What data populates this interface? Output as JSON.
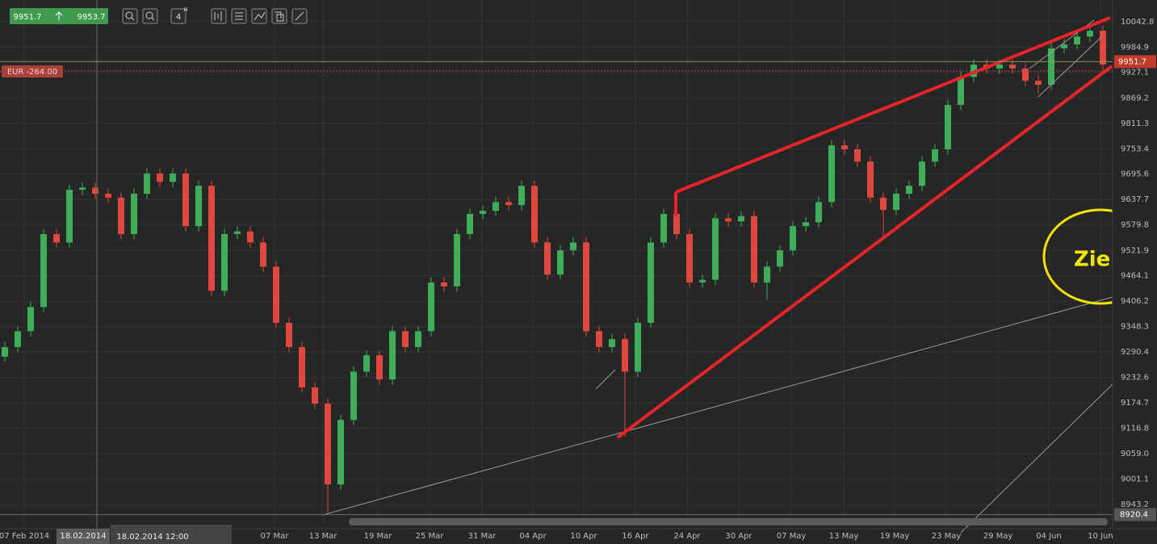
{
  "chart_data": {
    "type": "candlestick",
    "toolbar": {
      "sell": "9951.7",
      "buy": "9953.7",
      "interval": "4",
      "interval_unit": "H"
    },
    "position_label": "EUR -264.00",
    "last_price": 9951.7,
    "crosshair_price": 8920.4,
    "crosshair_date": "18.02.2014",
    "crosshair_datetime": "18.02.2014 12:00",
    "annotation": "Ziel",
    "colors": {
      "up": "#3fae5a",
      "down": "#e0473d",
      "grid": "#323232"
    },
    "grid": true,
    "xlim": [
      -0.375,
      85.75
    ],
    "ylim": [
      8916,
      10092
    ],
    "yticks": [
      10042.8,
      9984.9,
      9927.1,
      9869.2,
      9811.3,
      9753.4,
      9695.6,
      9637.7,
      9579.8,
      9521.9,
      9464.1,
      9406.2,
      9348.3,
      9290.4,
      9232.6,
      9174.7,
      9116.8,
      {
        "value": 9059,
        "label": "9059.0"
      },
      9001.1,
      8943.2
    ],
    "xticks": [
      {
        "value": 1.5,
        "label": "07 Feb 2014"
      },
      {
        "value": 20.875,
        "label": "07 Mar"
      },
      {
        "value": 24.625,
        "label": "13 Mar"
      },
      {
        "value": 28.875,
        "label": "19 Mar"
      },
      {
        "value": 32.875,
        "label": "25 Mar"
      },
      {
        "value": 36.94,
        "label": "31 Mar"
      },
      {
        "value": 40.875,
        "label": "04 Apr"
      },
      {
        "value": 44.81,
        "label": "10 Apr"
      },
      {
        "value": 48.81,
        "label": "16 Apr"
      },
      {
        "value": 52.81,
        "label": "24 Apr"
      },
      {
        "value": 56.81,
        "label": "30 Apr"
      },
      {
        "value": 60.875,
        "label": "07 May"
      },
      {
        "value": 64.94,
        "label": "13 May"
      },
      {
        "value": 68.875,
        "label": "19 May"
      },
      {
        "value": 72.875,
        "label": "23 May"
      },
      {
        "value": 76.875,
        "label": "29 May"
      },
      {
        "value": 80.81,
        "label": "04 Jun"
      },
      {
        "value": 84.81,
        "label": "10 Jun"
      }
    ],
    "x": [
      0,
      1,
      2,
      3,
      4,
      5,
      6,
      7,
      8,
      9,
      10,
      11,
      12,
      13,
      14,
      15,
      16,
      17,
      18,
      19,
      20,
      21,
      22,
      23,
      24,
      25,
      26,
      27,
      28,
      29,
      30,
      31,
      32,
      33,
      34,
      35,
      36,
      37,
      38,
      39,
      40,
      41,
      42,
      43,
      44,
      45,
      46,
      47,
      48,
      49,
      50,
      51,
      52,
      53,
      54,
      55,
      56,
      57,
      58,
      59,
      60,
      61,
      62,
      63,
      64,
      65,
      66,
      67,
      68,
      69,
      70,
      71,
      72,
      73,
      74,
      75,
      76,
      77,
      78,
      79,
      80,
      81,
      82,
      83,
      84,
      85
    ],
    "open": [
      9280,
      9302,
      9338,
      9393,
      9559,
      9540,
      9660,
      9665,
      9651,
      9642,
      9559,
      9651,
      9697,
      9678,
      9697,
      9577,
      9669,
      9430,
      9559,
      9565,
      9540,
      9485,
      9357,
      9302,
      9210,
      9173,
      8989,
      9136,
      9246,
      9283,
      9228,
      9338,
      9302,
      9338,
      9449,
      9440,
      9559,
      9605,
      9612,
      9632,
      9625,
      9669,
      9540,
      9467,
      9522,
      9540,
      9338,
      9302,
      9320,
      9246,
      9357,
      9540,
      9605,
      9559,
      9449,
      9455,
      9595,
      9588,
      9600,
      9449,
      9485,
      9522,
      9577,
      9586,
      9632,
      9761,
      9752,
      9724,
      9642,
      9614,
      9651,
      9669,
      9724,
      9752,
      9853,
      9917,
      9945,
      9936,
      9945,
      9936,
      9908,
      9899,
      9982,
      9991,
      10009,
      10022
    ],
    "high": [
      9314,
      9350,
      9405,
      9571,
      9571,
      9672,
      9677,
      9677,
      9663,
      9654,
      9663,
      9709,
      9709,
      9709,
      9709,
      9681,
      9681,
      9571,
      9577,
      9577,
      9552,
      9497,
      9369,
      9314,
      9222,
      9185,
      9148,
      9258,
      9295,
      9295,
      9350,
      9350,
      9350,
      9461,
      9461,
      9571,
      9617,
      9624,
      9644,
      9644,
      9681,
      9681,
      9552,
      9534,
      9552,
      9552,
      9350,
      9332,
      9332,
      9369,
      9552,
      9617,
      9640,
      9571,
      9467,
      9607,
      9607,
      9612,
      9612,
      9497,
      9534,
      9589,
      9598,
      9644,
      9773,
      9773,
      9764,
      9736,
      9654,
      9663,
      9681,
      9736,
      9764,
      9865,
      9929,
      9957,
      9957,
      9957,
      9957,
      9948,
      9920,
      9994,
      10003,
      10021,
      10034,
      10034
    ],
    "low": [
      9268,
      9290,
      9326,
      9381,
      9528,
      9528,
      9648,
      9639,
      9630,
      9547,
      9547,
      9639,
      9666,
      9666,
      9565,
      9565,
      9418,
      9418,
      9547,
      9528,
      9473,
      9345,
      9290,
      9198,
      9161,
      8925,
      8977,
      9124,
      9234,
      9216,
      9216,
      9290,
      9290,
      9326,
      9428,
      9428,
      9547,
      9593,
      9600,
      9613,
      9613,
      9528,
      9455,
      9455,
      9510,
      9326,
      9290,
      9290,
      9099,
      9234,
      9345,
      9528,
      9547,
      9437,
      9437,
      9443,
      9576,
      9576,
      9437,
      9410,
      9473,
      9510,
      9565,
      9574,
      9620,
      9740,
      9712,
      9630,
      9550,
      9602,
      9639,
      9657,
      9712,
      9740,
      9841,
      9905,
      9924,
      9924,
      9924,
      9896,
      9880,
      9887,
      9970,
      9979,
      9997,
      9933
    ],
    "close": [
      9302,
      9338,
      9393,
      9559,
      9540,
      9660,
      9665,
      9651,
      9642,
      9559,
      9651,
      9697,
      9678,
      9697,
      9577,
      9669,
      9430,
      9559,
      9565,
      9540,
      9485,
      9357,
      9302,
      9210,
      9173,
      8989,
      9136,
      9246,
      9283,
      9228,
      9338,
      9302,
      9338,
      9449,
      9440,
      9559,
      9605,
      9612,
      9632,
      9625,
      9669,
      9540,
      9467,
      9522,
      9540,
      9338,
      9302,
      9320,
      9246,
      9357,
      9540,
      9605,
      9559,
      9449,
      9455,
      9595,
      9588,
      9600,
      9449,
      9485,
      9522,
      9577,
      9586,
      9632,
      9761,
      9752,
      9724,
      9642,
      9614,
      9651,
      9669,
      9724,
      9752,
      9853,
      9917,
      9945,
      9936,
      9945,
      9936,
      9908,
      9899,
      9982,
      9991,
      10009,
      10022,
      9945
    ]
  }
}
